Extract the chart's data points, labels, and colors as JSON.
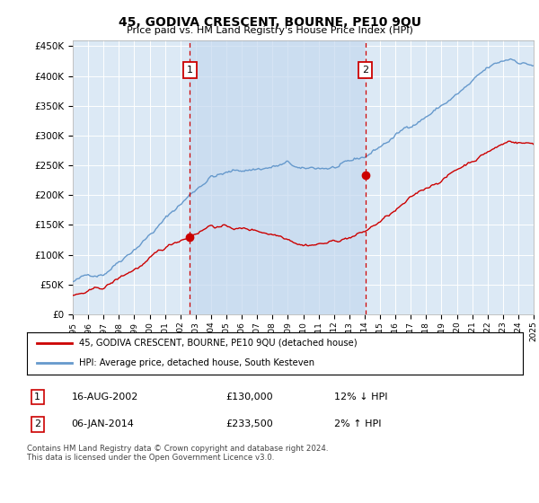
{
  "title": "45, GODIVA CRESCENT, BOURNE, PE10 9QU",
  "subtitle": "Price paid vs. HM Land Registry's House Price Index (HPI)",
  "ylim": [
    0,
    460000
  ],
  "xlim_start": 1995,
  "xlim_end": 2025,
  "plot_bg_color": "#dce9f5",
  "shade_color": "#c5d8ef",
  "sale1_date": 2002.62,
  "sale1_price": 130000,
  "sale2_date": 2014.04,
  "sale2_price": 233500,
  "legend_label1": "45, GODIVA CRESCENT, BOURNE, PE10 9QU (detached house)",
  "legend_label2": "HPI: Average price, detached house, South Kesteven",
  "table_row1_date": "16-AUG-2002",
  "table_row1_price": "£130,000",
  "table_row1_hpi": "12% ↓ HPI",
  "table_row2_date": "06-JAN-2014",
  "table_row2_price": "£233,500",
  "table_row2_hpi": "2% ↑ HPI",
  "footer": "Contains HM Land Registry data © Crown copyright and database right 2024.\nThis data is licensed under the Open Government Licence v3.0.",
  "line_color_red": "#cc0000",
  "line_color_blue": "#6699cc",
  "dashed_color": "#cc0000"
}
